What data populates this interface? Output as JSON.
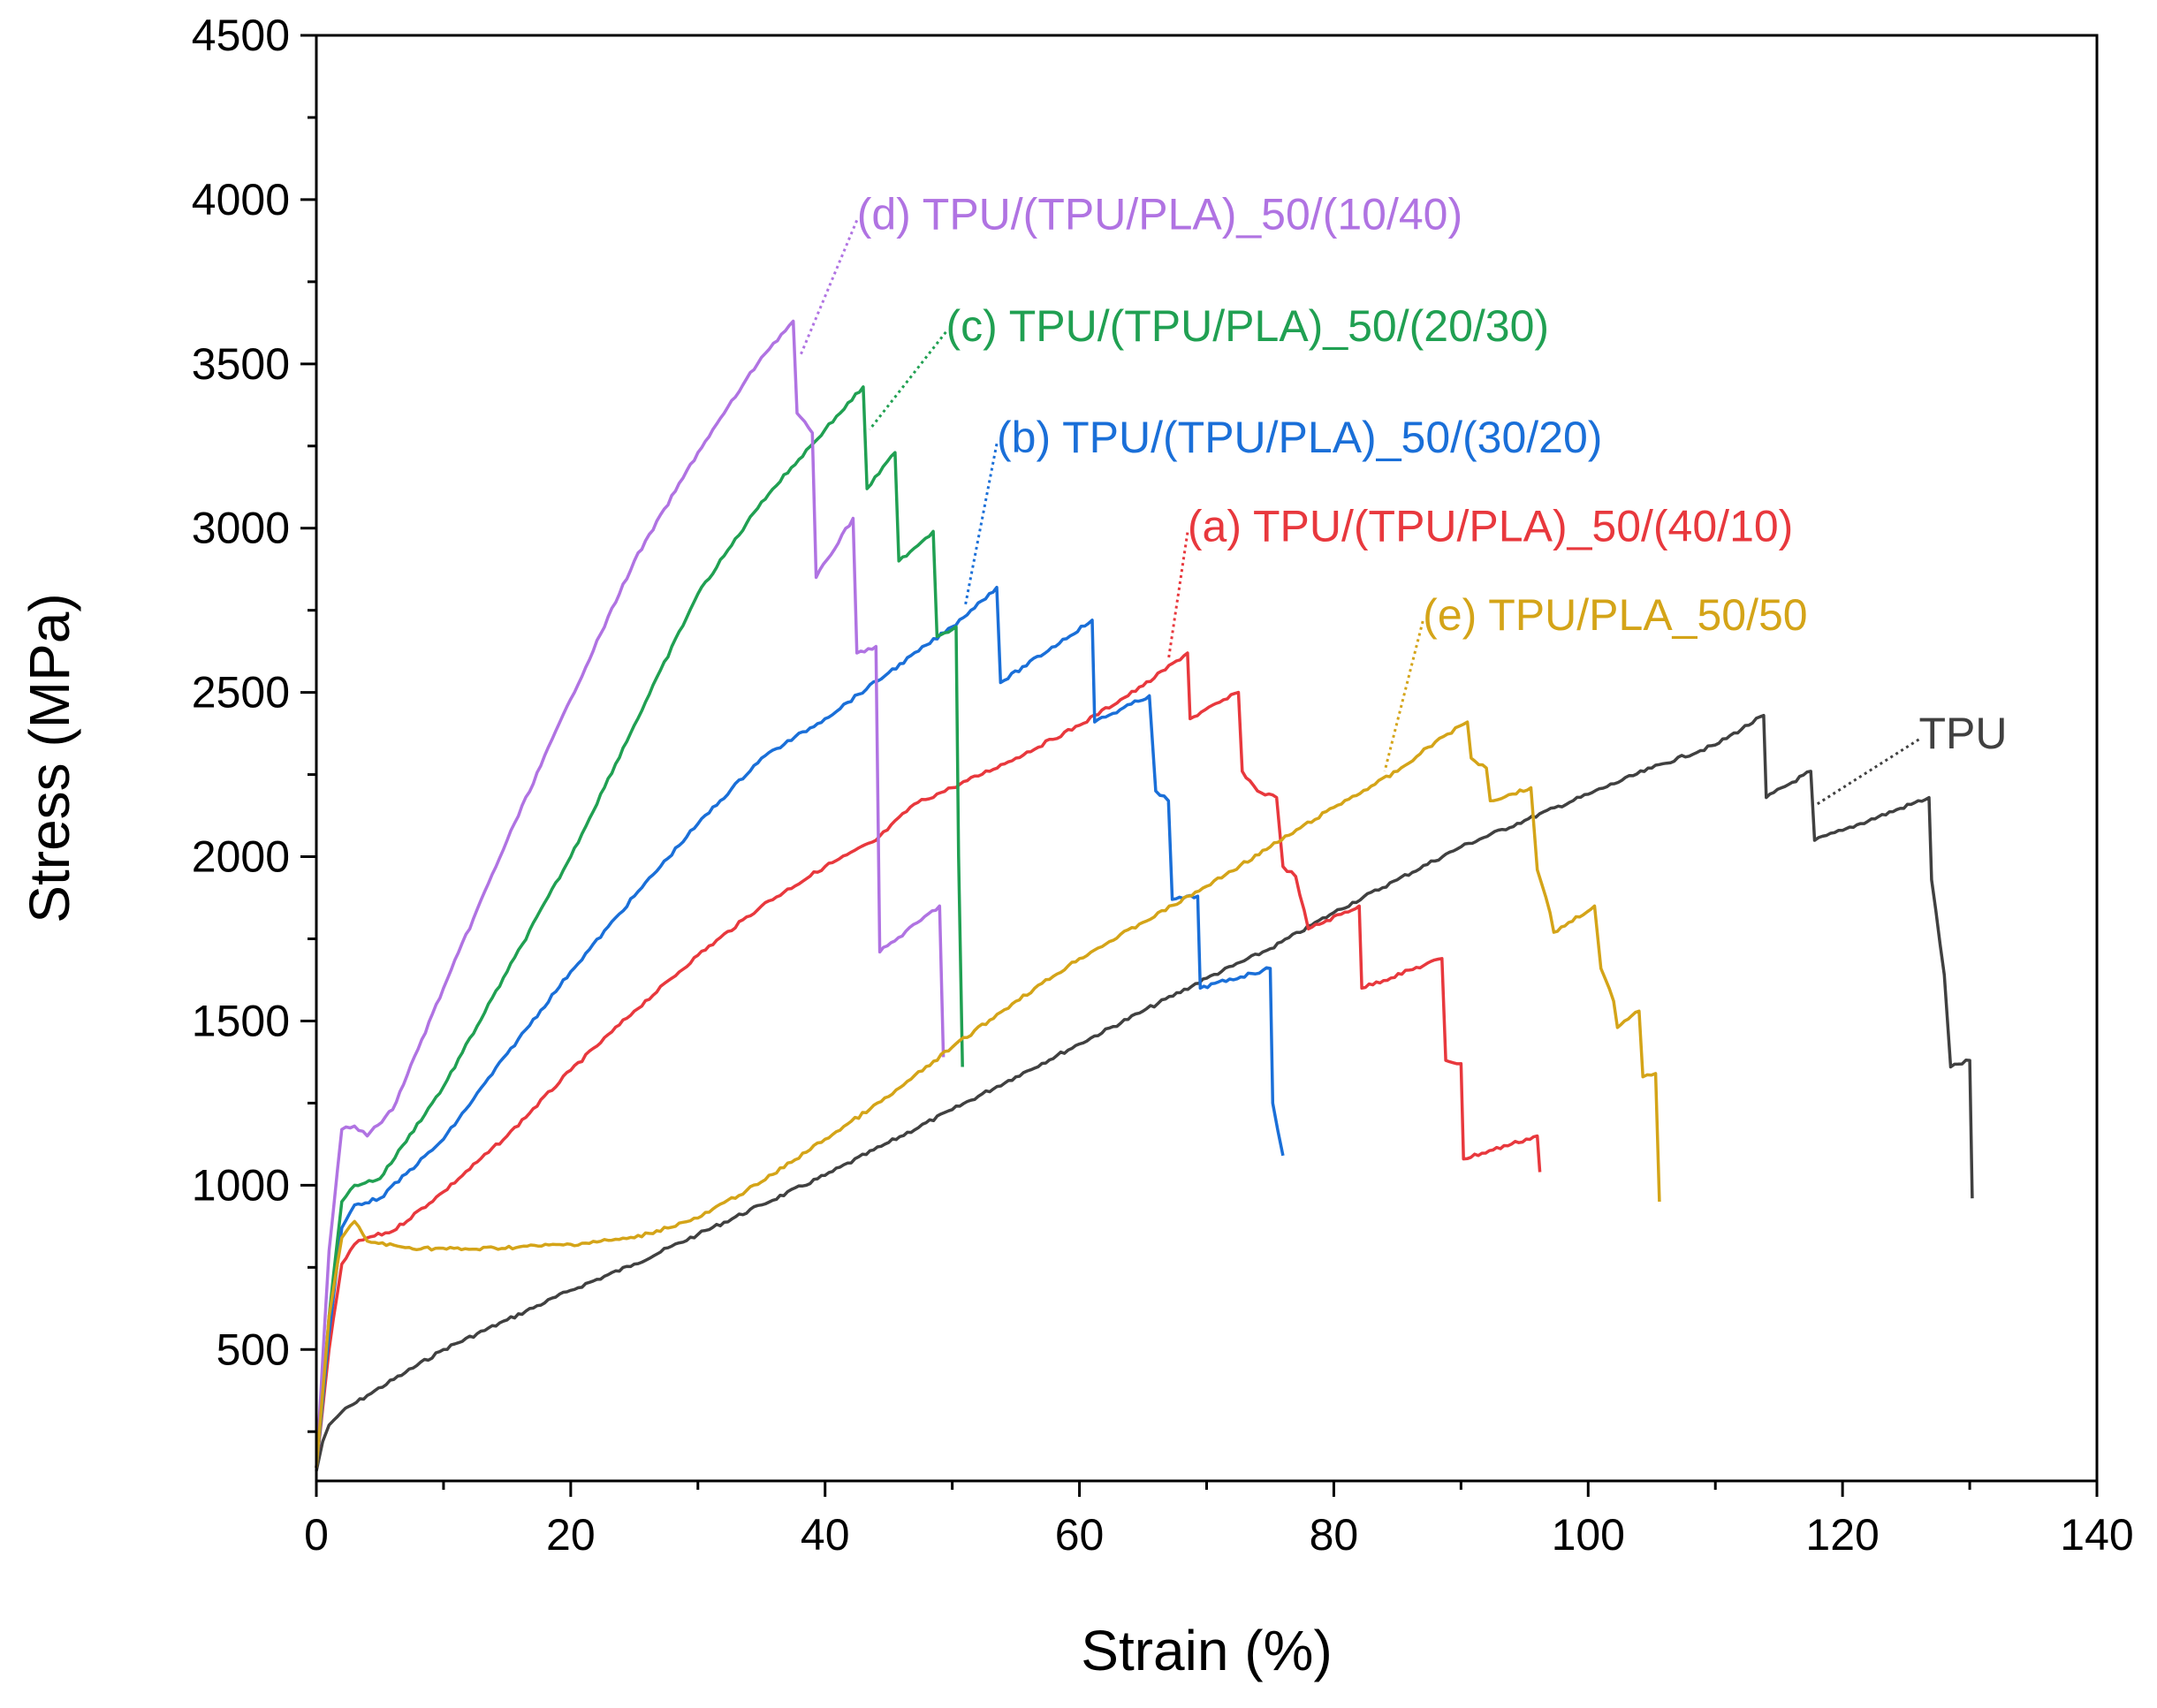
{
  "chart_data": {
    "type": "line",
    "title": "",
    "xlabel": "Strain (%)",
    "ylabel": "Stress (MPa)",
    "xlim": [
      0,
      140
    ],
    "ylim": [
      100,
      4500
    ],
    "xticks": [
      0,
      20,
      40,
      60,
      80,
      100,
      120,
      140
    ],
    "yticks": [
      500,
      1000,
      1500,
      2000,
      2500,
      3000,
      3500,
      4000,
      4500
    ],
    "series": [
      {
        "name": "TPU",
        "label": "TPU",
        "color": "#404040",
        "label_at": [
          126,
          2330
        ],
        "leader_to": [
          118,
          2160
        ],
        "points": [
          [
            0,
            130
          ],
          [
            0.5,
            220
          ],
          [
            1,
            270
          ],
          [
            2,
            310
          ],
          [
            4,
            360
          ],
          [
            7,
            430
          ],
          [
            10,
            500
          ],
          [
            15,
            590
          ],
          [
            20,
            680
          ],
          [
            25,
            760
          ],
          [
            30,
            850
          ],
          [
            35,
            940
          ],
          [
            40,
            1030
          ],
          [
            45,
            1130
          ],
          [
            50,
            1230
          ],
          [
            55,
            1330
          ],
          [
            60,
            1430
          ],
          [
            65,
            1530
          ],
          [
            70,
            1630
          ],
          [
            75,
            1720
          ],
          [
            80,
            1830
          ],
          [
            85,
            1930
          ],
          [
            90,
            2030
          ],
          [
            95,
            2110
          ],
          [
            100,
            2190
          ],
          [
            105,
            2270
          ],
          [
            110,
            2340
          ],
          [
            113.8,
            2430
          ],
          [
            114,
            2180
          ],
          [
            117.5,
            2260
          ],
          [
            117.8,
            2050
          ],
          [
            120,
            2080
          ],
          [
            126.8,
            2180
          ],
          [
            127,
            1930
          ],
          [
            128,
            1640
          ],
          [
            128.5,
            1360
          ],
          [
            130,
            1380
          ],
          [
            130.2,
            960
          ]
        ]
      },
      {
        "name": "(a) TPU/(TPU/PLA)_50/(40/10)",
        "label": "(a) TPU/(TPU/PLA)_50/(40/10)",
        "color": "#e8383d",
        "label_at": [
          68.5,
          2960
        ],
        "leader_to": [
          67,
          2600
        ],
        "points": [
          [
            0,
            140
          ],
          [
            1,
            500
          ],
          [
            2,
            760
          ],
          [
            3,
            820
          ],
          [
            4,
            840
          ],
          [
            6,
            860
          ],
          [
            10,
            980
          ],
          [
            15,
            1150
          ],
          [
            20,
            1350
          ],
          [
            25,
            1530
          ],
          [
            30,
            1700
          ],
          [
            35,
            1850
          ],
          [
            40,
            1970
          ],
          [
            44,
            2050
          ],
          [
            47,
            2160
          ],
          [
            50,
            2210
          ],
          [
            55,
            2300
          ],
          [
            60,
            2400
          ],
          [
            65,
            2520
          ],
          [
            68.5,
            2620
          ],
          [
            68.7,
            2420
          ],
          [
            72.5,
            2500
          ],
          [
            72.8,
            2260
          ],
          [
            74,
            2200
          ],
          [
            75.5,
            2180
          ],
          [
            76,
            1970
          ],
          [
            77,
            1940
          ],
          [
            78,
            1780
          ],
          [
            82,
            1850
          ],
          [
            82.2,
            1600
          ],
          [
            88.5,
            1690
          ],
          [
            88.8,
            1380
          ],
          [
            90,
            1370
          ],
          [
            90.2,
            1080
          ],
          [
            96,
            1150
          ],
          [
            96.2,
            1040
          ]
        ]
      },
      {
        "name": "(b) TPU/(TPU/PLA)_50/(30/20)",
        "label": "(b) TPU/(TPU/PLA)_50/(30/20)",
        "color": "#1a6fd8",
        "label_at": [
          53.5,
          3230
        ],
        "leader_to": [
          51,
          2760
        ],
        "points": [
          [
            0,
            140
          ],
          [
            1,
            550
          ],
          [
            2,
            870
          ],
          [
            3,
            940
          ],
          [
            5,
            960
          ],
          [
            10,
            1140
          ],
          [
            15,
            1400
          ],
          [
            20,
            1650
          ],
          [
            25,
            1880
          ],
          [
            30,
            2100
          ],
          [
            35,
            2300
          ],
          [
            40,
            2420
          ],
          [
            45,
            2560
          ],
          [
            50,
            2700
          ],
          [
            53.5,
            2820
          ],
          [
            53.8,
            2530
          ],
          [
            61,
            2720
          ],
          [
            61.2,
            2410
          ],
          [
            65.5,
            2490
          ],
          [
            66,
            2200
          ],
          [
            67,
            2170
          ],
          [
            67.3,
            1870
          ],
          [
            69.3,
            1880
          ],
          [
            69.5,
            1600
          ],
          [
            75,
            1660
          ],
          [
            75.2,
            1250
          ],
          [
            76,
            1090
          ]
        ]
      },
      {
        "name": "(c) TPU/(TPU/PLA)_50/(20/30)",
        "label": "(c) TPU/(TPU/PLA)_50/(20/30)",
        "color": "#20a052",
        "label_at": [
          49.5,
          3570
        ],
        "leader_to": [
          43.5,
          3300
        ],
        "points": [
          [
            0,
            140
          ],
          [
            1,
            600
          ],
          [
            2,
            950
          ],
          [
            3,
            1000
          ],
          [
            5,
            1020
          ],
          [
            10,
            1300
          ],
          [
            15,
            1650
          ],
          [
            20,
            2000
          ],
          [
            25,
            2400
          ],
          [
            30,
            2800
          ],
          [
            35,
            3080
          ],
          [
            40,
            3300
          ],
          [
            43,
            3430
          ],
          [
            43.3,
            3120
          ],
          [
            45.5,
            3230
          ],
          [
            45.8,
            2900
          ],
          [
            48.5,
            2990
          ],
          [
            48.8,
            2670
          ],
          [
            50.3,
            2700
          ],
          [
            50.5,
            2000
          ],
          [
            50.8,
            1360
          ]
        ]
      },
      {
        "name": "(d) TPU/(TPU/PLA)_50/(10/40)",
        "label": "(d) TPU/(TPU/PLA)_50/(10/40)",
        "color": "#b073e2",
        "label_at": [
          42.5,
          3910
        ],
        "leader_to": [
          38,
          3520
        ],
        "points": [
          [
            0,
            140
          ],
          [
            1,
            800
          ],
          [
            2,
            1170
          ],
          [
            3,
            1180
          ],
          [
            4,
            1150
          ],
          [
            6,
            1230
          ],
          [
            10,
            1600
          ],
          [
            15,
            2050
          ],
          [
            20,
            2480
          ],
          [
            25,
            2900
          ],
          [
            30,
            3230
          ],
          [
            35,
            3520
          ],
          [
            37.5,
            3630
          ],
          [
            37.8,
            3350
          ],
          [
            39,
            3290
          ],
          [
            39.3,
            2850
          ],
          [
            42.2,
            3030
          ],
          [
            42.5,
            2620
          ],
          [
            44,
            2640
          ],
          [
            44.3,
            1710
          ],
          [
            49,
            1850
          ],
          [
            49.3,
            1390
          ]
        ]
      },
      {
        "name": "(e) TPU/PLA_50/50",
        "label": "(e) TPU/PLA_50/50",
        "color": "#d4a418",
        "label_at": [
          87,
          2690
        ],
        "leader_to": [
          84,
          2260
        ],
        "points": [
          [
            0,
            140
          ],
          [
            1,
            600
          ],
          [
            2,
            840
          ],
          [
            3,
            890
          ],
          [
            4,
            830
          ],
          [
            7,
            810
          ],
          [
            12,
            805
          ],
          [
            20,
            820
          ],
          [
            25,
            840
          ],
          [
            30,
            900
          ],
          [
            35,
            1010
          ],
          [
            40,
            1140
          ],
          [
            45,
            1270
          ],
          [
            50,
            1420
          ],
          [
            55,
            1560
          ],
          [
            60,
            1690
          ],
          [
            65,
            1800
          ],
          [
            70,
            1910
          ],
          [
            75,
            2030
          ],
          [
            80,
            2150
          ],
          [
            85,
            2260
          ],
          [
            88,
            2350
          ],
          [
            90.5,
            2410
          ],
          [
            90.8,
            2300
          ],
          [
            92,
            2270
          ],
          [
            92.3,
            2170
          ],
          [
            95.5,
            2210
          ],
          [
            96,
            1960
          ],
          [
            97,
            1830
          ],
          [
            97.3,
            1770
          ],
          [
            100.5,
            1850
          ],
          [
            101,
            1660
          ],
          [
            102,
            1560
          ],
          [
            102.3,
            1480
          ],
          [
            104,
            1530
          ],
          [
            104.3,
            1330
          ],
          [
            105.3,
            1340
          ],
          [
            105.6,
            950
          ]
        ]
      }
    ]
  }
}
